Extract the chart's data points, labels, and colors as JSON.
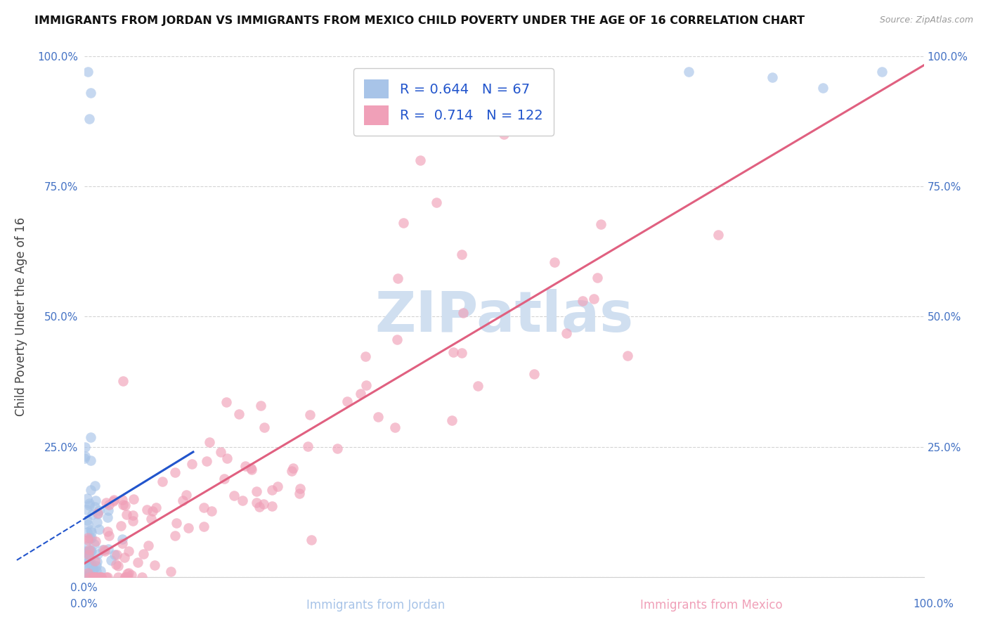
{
  "title": "IMMIGRANTS FROM JORDAN VS IMMIGRANTS FROM MEXICO CHILD POVERTY UNDER THE AGE OF 16 CORRELATION CHART",
  "source": "Source: ZipAtlas.com",
  "xlabel_jordan": "Immigrants from Jordan",
  "xlabel_mexico": "Immigrants from Mexico",
  "ylabel": "Child Poverty Under the Age of 16",
  "jordan_R": 0.644,
  "jordan_N": 67,
  "mexico_R": 0.714,
  "mexico_N": 122,
  "jordan_color": "#a8c4e8",
  "mexico_color": "#f0a0b8",
  "jordan_line_color": "#2255cc",
  "mexico_line_color": "#e06080",
  "watermark_text": "ZIPatlas",
  "watermark_color": "#d0dff0",
  "background_color": "#ffffff",
  "legend_R_color": "#2255cc",
  "legend_N_color": "#2255cc",
  "tick_color": "#4472c4",
  "grid_color": "#d0d0d0",
  "title_color": "#111111",
  "ylabel_color": "#444444",
  "source_color": "#999999"
}
